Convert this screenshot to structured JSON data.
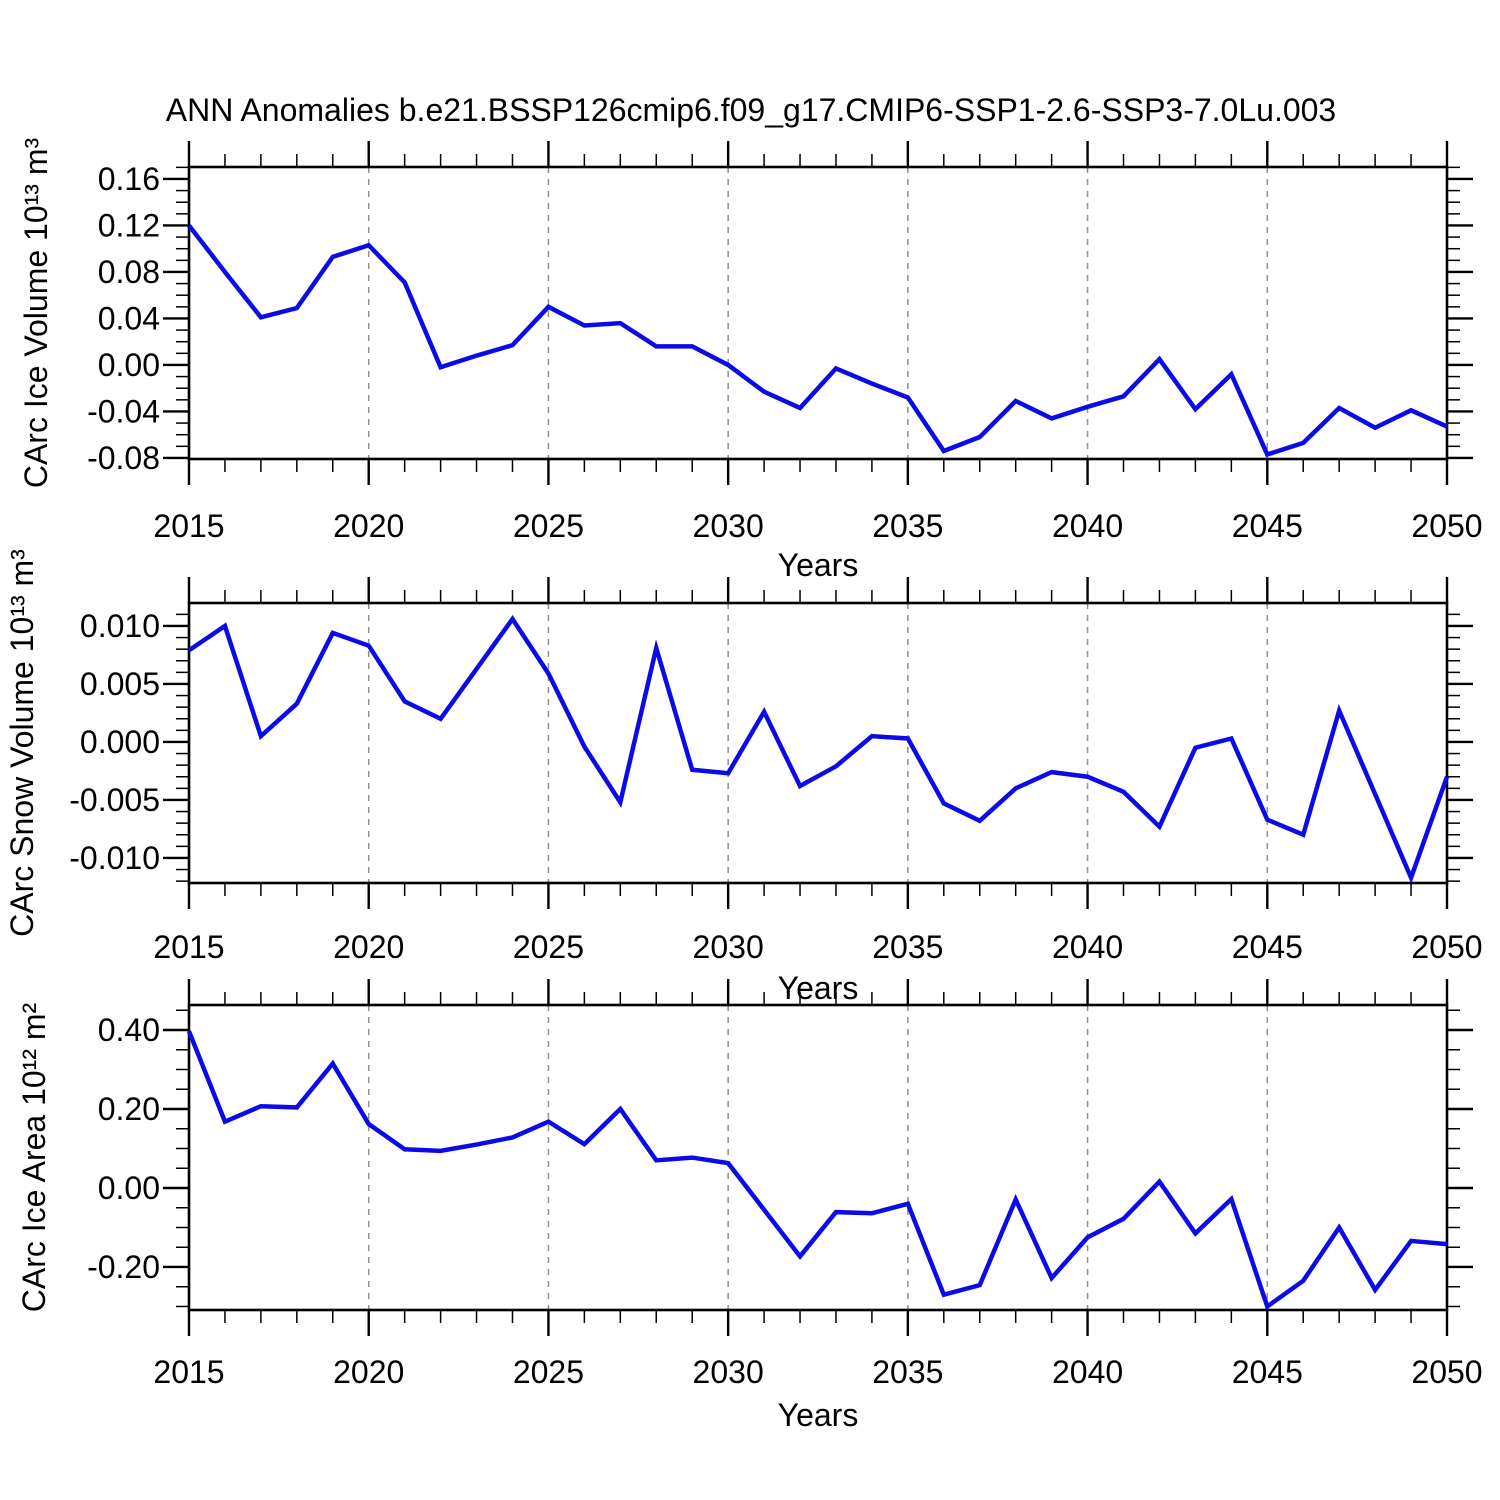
{
  "title": "ANN Anomalies b.e21.BSSP126cmip6.f09_g17.CMIP6-SSP1-2.6-SSP3-7.0Lu.003",
  "line_color": "#0b0be8",
  "grid_color": "#909090",
  "axis_color": "#000000",
  "chart_data": [
    {
      "type": "line",
      "title": "",
      "ylabel": "CArc Ice Volume 10¹³ m³",
      "xlabel": "Years",
      "xlim": [
        2015,
        2050
      ],
      "ylim": [
        -0.0809,
        0.1703
      ],
      "grid": "vertical-dashed",
      "legend": "none",
      "x_ticks": [
        2015,
        2020,
        2025,
        2030,
        2035,
        2040,
        2045,
        2050
      ],
      "x_tick_labels": [
        "2015",
        "2020",
        "2025",
        "2030",
        "2035",
        "2040",
        "2045",
        "2050"
      ],
      "x_minor_step": 1,
      "y_ticks": [
        0.16,
        0.12,
        0.08,
        0.04,
        0.0,
        -0.04,
        -0.08
      ],
      "y_tick_labels": [
        "0.16",
        "0.12",
        "0.08",
        "0.04",
        "0.00",
        "-0.04",
        "-0.08"
      ],
      "y_minor_step": 0.01,
      "grid_x": [
        2020,
        2025,
        2030,
        2035,
        2040,
        2045
      ],
      "years": [
        2015,
        2016,
        2017,
        2018,
        2019,
        2020,
        2021,
        2022,
        2023,
        2024,
        2025,
        2026,
        2027,
        2028,
        2029,
        2030,
        2031,
        2032,
        2033,
        2034,
        2035,
        2036,
        2037,
        2038,
        2039,
        2040,
        2041,
        2042,
        2043,
        2044,
        2045,
        2046,
        2047,
        2048,
        2049,
        2050
      ],
      "values": [
        0.12,
        0.08,
        0.041,
        0.049,
        0.093,
        0.103,
        0.071,
        -0.002,
        0.008,
        0.017,
        0.05,
        0.034,
        0.036,
        0.016,
        0.016,
        0.0,
        -0.023,
        -0.037,
        -0.003,
        -0.016,
        -0.028,
        -0.074,
        -0.062,
        -0.031,
        -0.046,
        -0.036,
        -0.027,
        0.005,
        -0.038,
        -0.008,
        -0.077,
        -0.067,
        -0.037,
        -0.054,
        -0.039,
        -0.053
      ]
    },
    {
      "type": "line",
      "title": "",
      "ylabel": "CArc Snow Volume 10¹³ m³",
      "xlabel": "Years",
      "xlim": [
        2015,
        2050
      ],
      "ylim": [
        -0.01216,
        0.01198
      ],
      "grid": "vertical-dashed",
      "legend": "none",
      "x_ticks": [
        2015,
        2020,
        2025,
        2030,
        2035,
        2040,
        2045,
        2050
      ],
      "x_tick_labels": [
        "2015",
        "2020",
        "2025",
        "2030",
        "2035",
        "2040",
        "2045",
        "2050"
      ],
      "x_minor_step": 1,
      "y_ticks": [
        0.01,
        0.005,
        0.0,
        -0.005,
        -0.01
      ],
      "y_tick_labels": [
        "0.010",
        "0.005",
        "0.000",
        "-0.005",
        "-0.010"
      ],
      "y_minor_step": 0.001,
      "grid_x": [
        2020,
        2025,
        2030,
        2035,
        2040,
        2045
      ],
      "years": [
        2015,
        2016,
        2017,
        2018,
        2019,
        2020,
        2021,
        2022,
        2023,
        2024,
        2025,
        2026,
        2027,
        2028,
        2029,
        2030,
        2031,
        2032,
        2033,
        2034,
        2035,
        2036,
        2037,
        2038,
        2039,
        2040,
        2041,
        2042,
        2043,
        2044,
        2045,
        2046,
        2047,
        2048,
        2049,
        2050
      ],
      "values": [
        0.0079,
        0.01,
        0.0005,
        0.0033,
        0.0094,
        0.0083,
        0.0035,
        0.002,
        0.0063,
        0.0106,
        0.0059,
        -0.0004,
        -0.0052,
        0.0081,
        -0.0024,
        -0.0027,
        0.0026,
        -0.0038,
        -0.0021,
        0.0005,
        0.0003,
        -0.0053,
        -0.0068,
        -0.004,
        -0.0026,
        -0.003,
        -0.0043,
        -0.0073,
        -0.0005,
        0.0003,
        -0.0067,
        -0.008,
        0.0027,
        -0.0045,
        -0.0117,
        -0.003
      ]
    },
    {
      "type": "line",
      "title": "",
      "ylabel": "CArc Ice Area 10¹² m²",
      "xlabel": "Years",
      "xlim": [
        2015,
        2050
      ],
      "ylim": [
        -0.3089,
        0.4633
      ],
      "grid": "vertical-dashed",
      "legend": "none",
      "x_ticks": [
        2015,
        2020,
        2025,
        2030,
        2035,
        2040,
        2045,
        2050
      ],
      "x_tick_labels": [
        "2015",
        "2020",
        "2025",
        "2030",
        "2035",
        "2040",
        "2045",
        "2050"
      ],
      "x_minor_step": 1,
      "y_ticks": [
        0.4,
        0.2,
        0.0,
        -0.2
      ],
      "y_tick_labels": [
        "0.40",
        "0.20",
        "0.00",
        "-0.20"
      ],
      "y_minor_step": 0.05,
      "grid_x": [
        2020,
        2025,
        2030,
        2035,
        2040,
        2045
      ],
      "years": [
        2015,
        2016,
        2017,
        2018,
        2019,
        2020,
        2021,
        2022,
        2023,
        2024,
        2025,
        2026,
        2027,
        2028,
        2029,
        2030,
        2031,
        2032,
        2033,
        2034,
        2035,
        2036,
        2037,
        2038,
        2039,
        2040,
        2041,
        2042,
        2043,
        2044,
        2045,
        2046,
        2047,
        2048,
        2049,
        2050
      ],
      "values": [
        0.397,
        0.168,
        0.207,
        0.204,
        0.315,
        0.162,
        0.098,
        0.094,
        0.11,
        0.128,
        0.168,
        0.111,
        0.2,
        0.07,
        0.077,
        0.063,
        -0.055,
        -0.173,
        -0.061,
        -0.064,
        -0.04,
        -0.27,
        -0.246,
        -0.029,
        -0.228,
        -0.125,
        -0.078,
        0.016,
        -0.115,
        -0.028,
        -0.3,
        -0.235,
        -0.1,
        -0.258,
        -0.134,
        -0.142
      ]
    }
  ]
}
